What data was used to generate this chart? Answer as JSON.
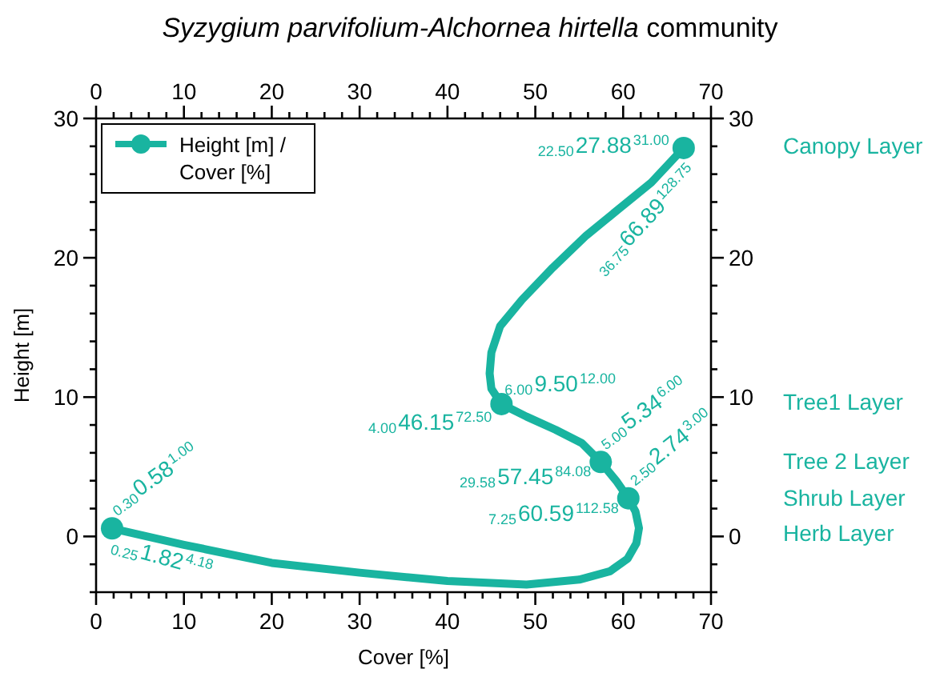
{
  "chart_data": {
    "type": "line",
    "title": "Syzygium parvifolium-Alchornea hirtella community",
    "xlabel": "Cover [%]",
    "ylabel": "Height [m]",
    "xlim": [
      0,
      70
    ],
    "xticks": [
      0,
      {
        "value": 2,
        "label": null
      },
      {
        "value": 4,
        "label": null
      },
      {
        "value": 6,
        "label": null
      },
      {
        "value": 8,
        "label": null
      },
      10,
      {
        "value": 12,
        "label": null
      },
      {
        "value": 14,
        "label": null
      },
      {
        "value": 16,
        "label": null
      },
      {
        "value": 18,
        "label": null
      },
      20,
      {
        "value": 22,
        "label": null
      },
      {
        "value": 24,
        "label": null
      },
      {
        "value": 26,
        "label": null
      },
      {
        "value": 28,
        "label": null
      },
      30,
      {
        "value": 32,
        "label": null
      },
      {
        "value": 34,
        "label": null
      },
      {
        "value": 36,
        "label": null
      },
      {
        "value": 38,
        "label": null
      },
      40,
      {
        "value": 42,
        "label": null
      },
      {
        "value": 44,
        "label": null
      },
      {
        "value": 46,
        "label": null
      },
      {
        "value": 48,
        "label": null
      },
      50,
      {
        "value": 52,
        "label": null
      },
      {
        "value": 54,
        "label": null
      },
      {
        "value": 56,
        "label": null
      },
      {
        "value": 58,
        "label": null
      },
      60,
      {
        "value": 62,
        "label": null
      },
      {
        "value": 64,
        "label": null
      },
      {
        "value": 66,
        "label": null
      },
      {
        "value": 68,
        "label": null
      },
      70
    ],
    "x2lim": [
      0,
      70
    ],
    "x2ticks": [
      0,
      {
        "value": 2,
        "label": null
      },
      {
        "value": 4,
        "label": null
      },
      {
        "value": 6,
        "label": null
      },
      {
        "value": 8,
        "label": null
      },
      10,
      {
        "value": 12,
        "label": null
      },
      {
        "value": 14,
        "label": null
      },
      {
        "value": 16,
        "label": null
      },
      {
        "value": 18,
        "label": null
      },
      20,
      {
        "value": 22,
        "label": null
      },
      {
        "value": 24,
        "label": null
      },
      {
        "value": 26,
        "label": null
      },
      {
        "value": 28,
        "label": null
      },
      30,
      {
        "value": 32,
        "label": null
      },
      {
        "value": 34,
        "label": null
      },
      {
        "value": 36,
        "label": null
      },
      {
        "value": 38,
        "label": null
      },
      40,
      {
        "value": 42,
        "label": null
      },
      {
        "value": 44,
        "label": null
      },
      {
        "value": 46,
        "label": null
      },
      {
        "value": 48,
        "label": null
      },
      50,
      {
        "value": 52,
        "label": null
      },
      {
        "value": 54,
        "label": null
      },
      {
        "value": 56,
        "label": null
      },
      {
        "value": 58,
        "label": null
      },
      60,
      {
        "value": 62,
        "label": null
      },
      {
        "value": 64,
        "label": null
      },
      {
        "value": 66,
        "label": null
      },
      {
        "value": 68,
        "label": null
      },
      70
    ],
    "ylim": [
      -4,
      30
    ],
    "yticks": [
      {
        "value": -4,
        "label": null
      },
      {
        "value": -2,
        "label": null
      },
      0,
      {
        "value": 2,
        "label": null
      },
      {
        "value": 4,
        "label": null
      },
      {
        "value": 6,
        "label": null
      },
      {
        "value": 8,
        "label": null
      },
      10,
      {
        "value": 12,
        "label": null
      },
      {
        "value": 14,
        "label": null
      },
      {
        "value": 16,
        "label": null
      },
      {
        "value": 18,
        "label": null
      },
      20,
      {
        "value": 22,
        "label": null
      },
      {
        "value": 24,
        "label": null
      },
      {
        "value": 26,
        "label": null
      },
      {
        "value": 28,
        "label": null
      },
      30
    ],
    "y2lim": [
      -4,
      30
    ],
    "y2ticks": [
      {
        "value": -4,
        "label": null
      },
      {
        "value": -2,
        "label": null
      },
      0,
      {
        "value": 2,
        "label": null
      },
      {
        "value": 4,
        "label": null
      },
      {
        "value": 6,
        "label": null
      },
      {
        "value": 8,
        "label": null
      },
      10,
      {
        "value": 12,
        "label": null
      },
      {
        "value": 14,
        "label": null
      },
      {
        "value": 16,
        "label": null
      },
      {
        "value": 18,
        "label": null
      },
      20,
      {
        "value": 22,
        "label": null
      },
      {
        "value": 24,
        "label": null
      },
      {
        "value": 26,
        "label": null
      },
      {
        "value": 28,
        "label": null
      },
      30
    ],
    "legend": "top left",
    "series": [
      {
        "color": "#19b4a0",
        "marker": "none",
        "line_style": "solid",
        "x": [
          1.82,
          10,
          20,
          30,
          40,
          49,
          55,
          58.5,
          60.5,
          61.5,
          61.8,
          61.4,
          60.59,
          59.2,
          57.45,
          55.3,
          52.3,
          49,
          46.15,
          45,
          44.8,
          45,
          46,
          48.5,
          52,
          55.8,
          59.5,
          63.2,
          66.89
        ],
        "values": [
          0.58,
          -0.6,
          -1.9,
          -2.6,
          -3.2,
          -3.45,
          -3.1,
          -2.5,
          -1.6,
          -0.5,
          0.6,
          1.8,
          2.74,
          4.0,
          5.34,
          6.7,
          7.66,
          8.6,
          9.5,
          10.6,
          11.7,
          13.2,
          15.1,
          17,
          19.3,
          21.6,
          23.5,
          25.4,
          27.88
        ]
      },
      {
        "type": "scatter",
        "name": "Height [m] / Cover [%]",
        "color": "#19b4a0",
        "marker": "circle",
        "x": [
          1.82,
          60.59,
          57.45,
          46.15,
          66.89
        ],
        "values": [
          0.58,
          2.74,
          5.34,
          9.5,
          27.88
        ]
      }
    ],
    "annotations": [
      {
        "text": "$_{0.30}$0.58$^{1.00}$",
        "x": 1.82,
        "y": 0.58
      },
      {
        "text": "$_{0.25}$1.82$^{4.18}$",
        "x": 1.82,
        "y": 0.58
      },
      {
        "text": "$_{2.50}$2.74$^{3.00}$",
        "x": 60.59,
        "y": 2.74
      },
      {
        "text": "$_{7.25}$60.59$^{112.58}$",
        "x": 60.59,
        "y": 2.74
      },
      {
        "text": "$_{5.00}$5.34$^{6.00}$",
        "x": 57.45,
        "y": 5.34
      },
      {
        "text": "$_{29.58}$57.45$^{84.08}$",
        "x": 57.45,
        "y": 5.34
      },
      {
        "text": "$_{6.00}$9.50$^{12.00}$",
        "x": 46.15,
        "y": 9.5
      },
      {
        "text": "$_{4.00}$46.15$^{72.50}$",
        "x": 46.15,
        "y": 9.5
      },
      {
        "text": "$_{22.50}$27.88$^{31.00}$",
        "x": 66.89,
        "y": 27.88
      },
      {
        "text": "$_{36.75}$66.89$^{128.75}$",
        "x": 66.89,
        "y": 27.88
      },
      "Canopy Layer",
      "Tree1 Layer",
      "Tree 2 Layer",
      "Shrub Layer",
      "Herb Layer"
    ]
  }
}
